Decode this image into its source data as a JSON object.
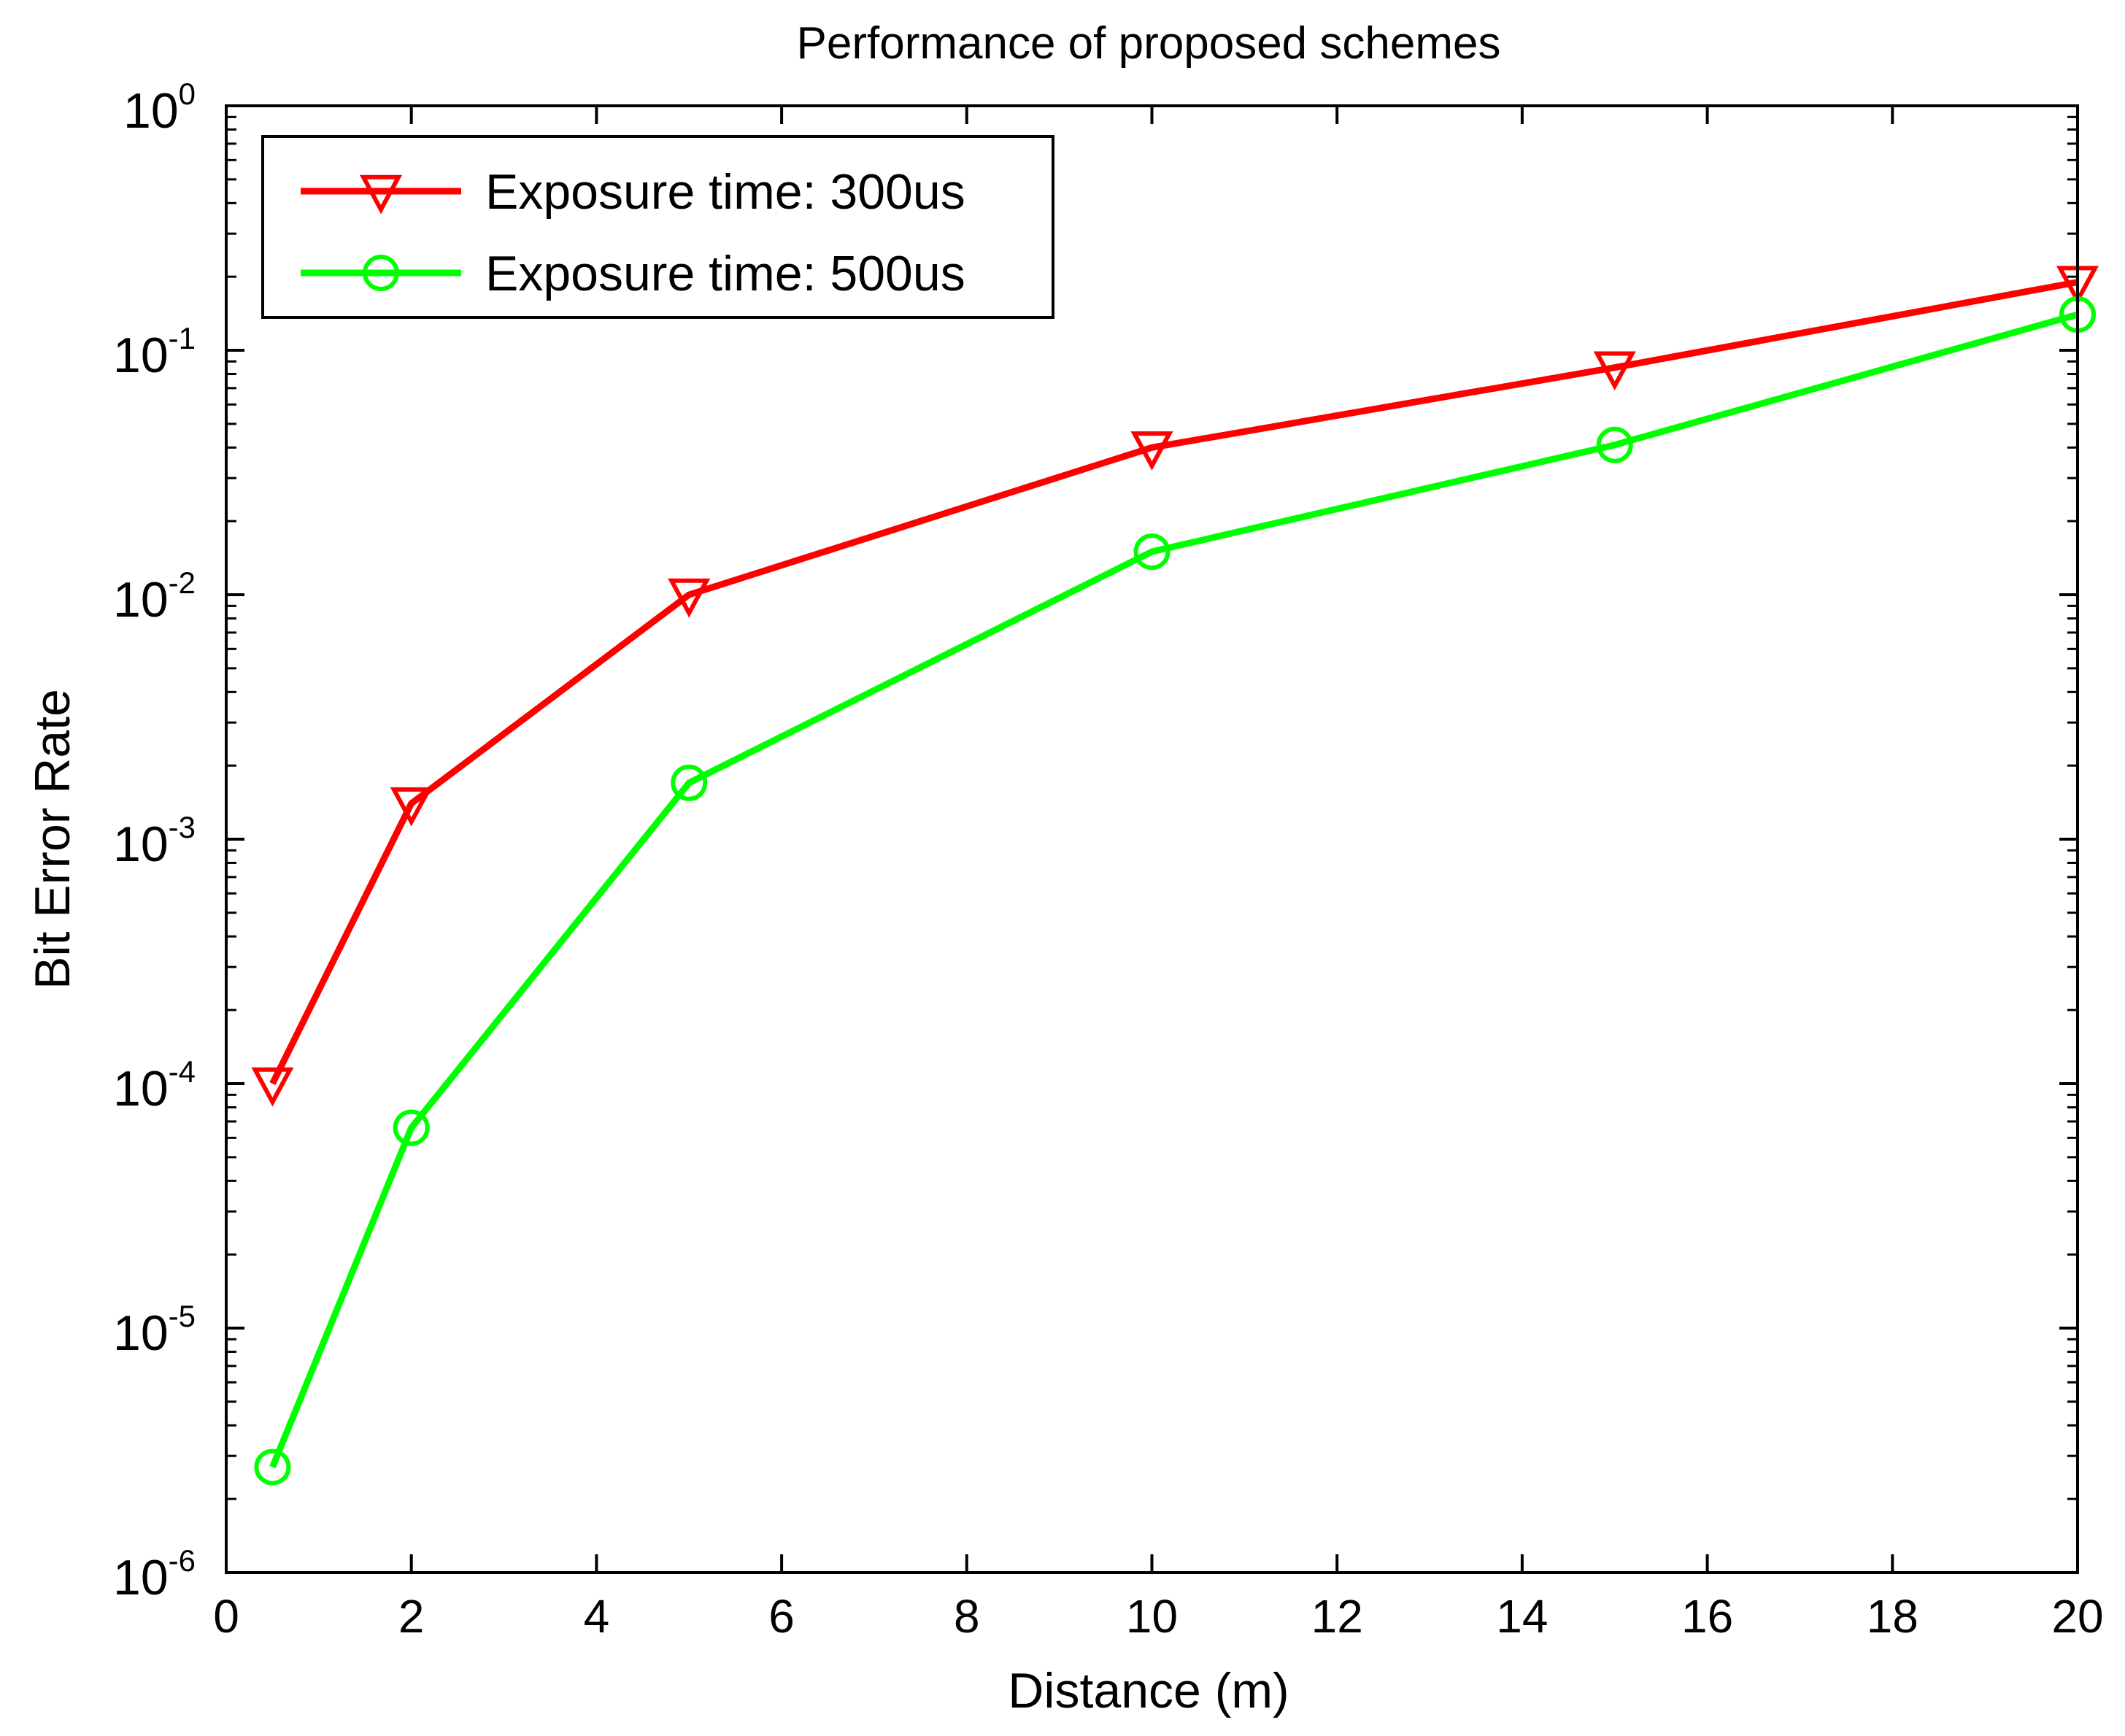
{
  "chart_data": {
    "type": "line",
    "title": "Performance of proposed schemes",
    "xlabel": "Distance (m)",
    "ylabel": "Bit Error Rate",
    "xlim": [
      0,
      20
    ],
    "ylim": [
      1e-06,
      1
    ],
    "yscale": "log",
    "x_ticks": [
      0,
      2,
      4,
      6,
      8,
      10,
      12,
      14,
      16,
      18,
      20
    ],
    "y_ticks": [
      {
        "value": 1e-06,
        "base": "10",
        "exp": "-6"
      },
      {
        "value": 1e-05,
        "base": "10",
        "exp": "-5"
      },
      {
        "value": 0.0001,
        "base": "10",
        "exp": "-4"
      },
      {
        "value": 0.001,
        "base": "10",
        "exp": "-3"
      },
      {
        "value": 0.01,
        "base": "10",
        "exp": "-2"
      },
      {
        "value": 0.1,
        "base": "10",
        "exp": "-1"
      },
      {
        "value": 1,
        "base": "10",
        "exp": "0"
      }
    ],
    "grid": false,
    "legend_position": "top-left",
    "series": [
      {
        "name": "Exposure time: 300us",
        "color": "#ff0000",
        "marker": "triangle-down",
        "x": [
          0.5,
          2,
          5,
          10,
          15,
          20
        ],
        "y": [
          0.0001,
          0.0014,
          0.01,
          0.04,
          0.085,
          0.19
        ]
      },
      {
        "name": "Exposure time: 500us",
        "color": "#00ff00",
        "marker": "circle",
        "x": [
          0.5,
          2,
          5,
          10,
          15,
          20
        ],
        "y": [
          2.7e-06,
          6.6e-05,
          0.0017,
          0.015,
          0.041,
          0.14
        ]
      }
    ]
  }
}
